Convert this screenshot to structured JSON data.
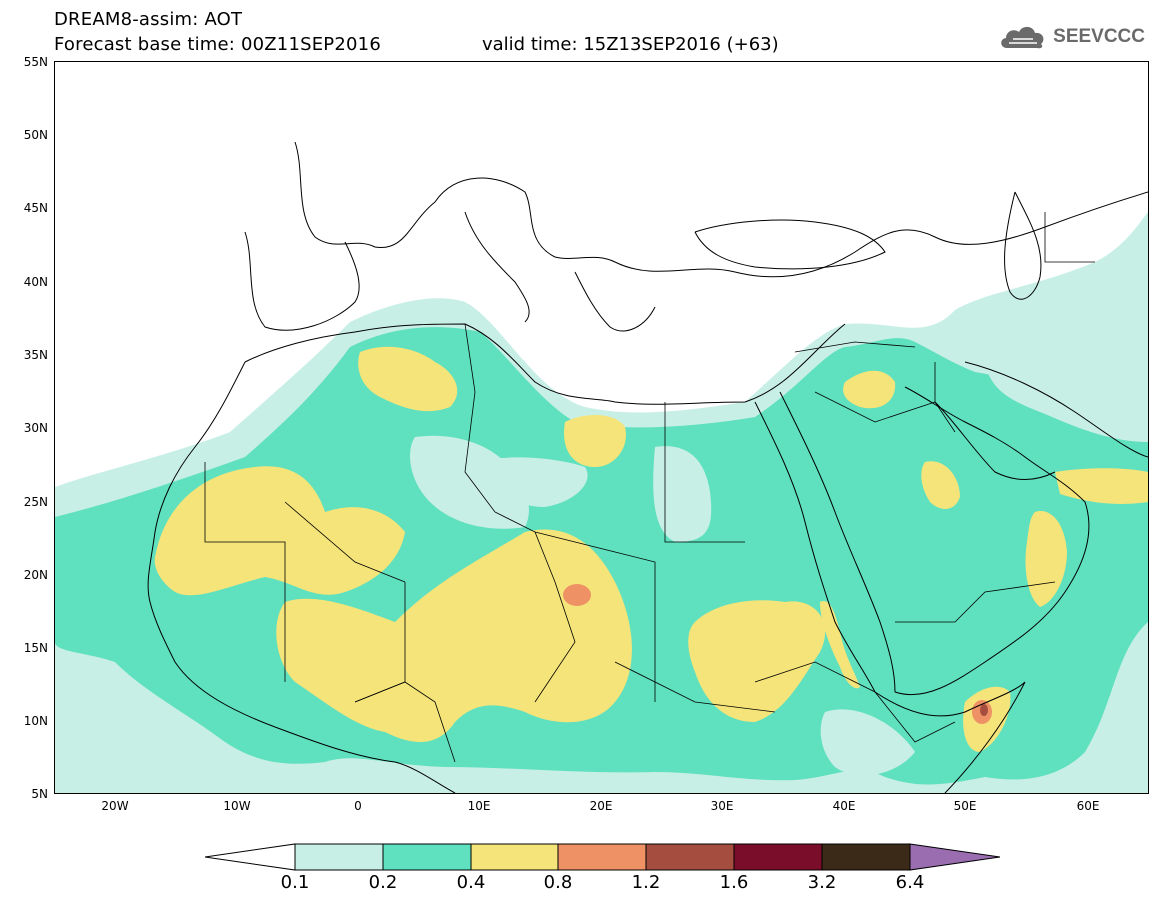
{
  "title": {
    "line1": "DREAM8-assim: AOT",
    "base_time": "Forecast base time: 00Z11SEP2016",
    "valid_time": "valid time: 15Z13SEP2016 (+63)"
  },
  "logo": {
    "text": "SEEVCCC",
    "icon": "cloud-icon"
  },
  "map": {
    "lon_range": [
      -25,
      65
    ],
    "lat_range": [
      5,
      55
    ],
    "y_ticks": [
      "55N",
      "50N",
      "45N",
      "40N",
      "35N",
      "30N",
      "25N",
      "20N",
      "15N",
      "10N",
      "5N"
    ],
    "x_ticks": [
      "20W",
      "10W",
      "0",
      "10E",
      "20E",
      "30E",
      "40E",
      "50E",
      "60E"
    ]
  },
  "legend": {
    "labels": [
      "0.1",
      "0.2",
      "0.4",
      "0.8",
      "1.2",
      "1.6",
      "3.2",
      "6.4"
    ],
    "colors": [
      "#ffffff",
      "#c8efe6",
      "#5fe0bf",
      "#f5e479",
      "#ee9165",
      "#a54e3f",
      "#7a0e2a",
      "#3b2a17",
      "#9a6db0"
    ]
  }
}
